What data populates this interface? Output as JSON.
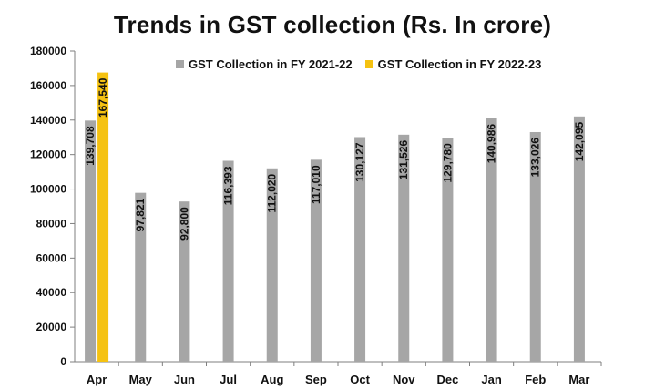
{
  "chart_data": {
    "type": "bar",
    "title": "Trends in GST collection (Rs. In crore)",
    "categories": [
      "Apr",
      "May",
      "Jun",
      "Jul",
      "Aug",
      "Sep",
      "Oct",
      "Nov",
      "Dec",
      "Jan",
      "Feb",
      "Mar"
    ],
    "series": [
      {
        "name": "GST Collection in FY 2021-22",
        "color": "#a6a6a6",
        "values": [
          139708,
          97821,
          92800,
          116393,
          112020,
          117010,
          130127,
          131526,
          129780,
          140986,
          133026,
          142095
        ],
        "labels": [
          "139,708",
          "97,821",
          "92,800",
          "116,393",
          "112,020",
          "117,010",
          "130,127",
          "131,526",
          "129,780",
          "140,986",
          "133,026",
          "142,095"
        ]
      },
      {
        "name": "GST Collection in FY 2022-23",
        "color": "#f5c211",
        "values": [
          167540,
          null,
          null,
          null,
          null,
          null,
          null,
          null,
          null,
          null,
          null,
          null
        ],
        "labels": [
          "167,540",
          "",
          "",
          "",
          "",
          "",
          "",
          "",
          "",
          "",
          "",
          ""
        ]
      }
    ],
    "ylim": [
      0,
      180000
    ],
    "yticks": [
      "0",
      "20000",
      "40000",
      "60000",
      "80000",
      "100000",
      "120000",
      "140000",
      "160000",
      "180000"
    ],
    "xlabel": "",
    "ylabel": "",
    "grid": false,
    "legend_position": "top-center"
  }
}
